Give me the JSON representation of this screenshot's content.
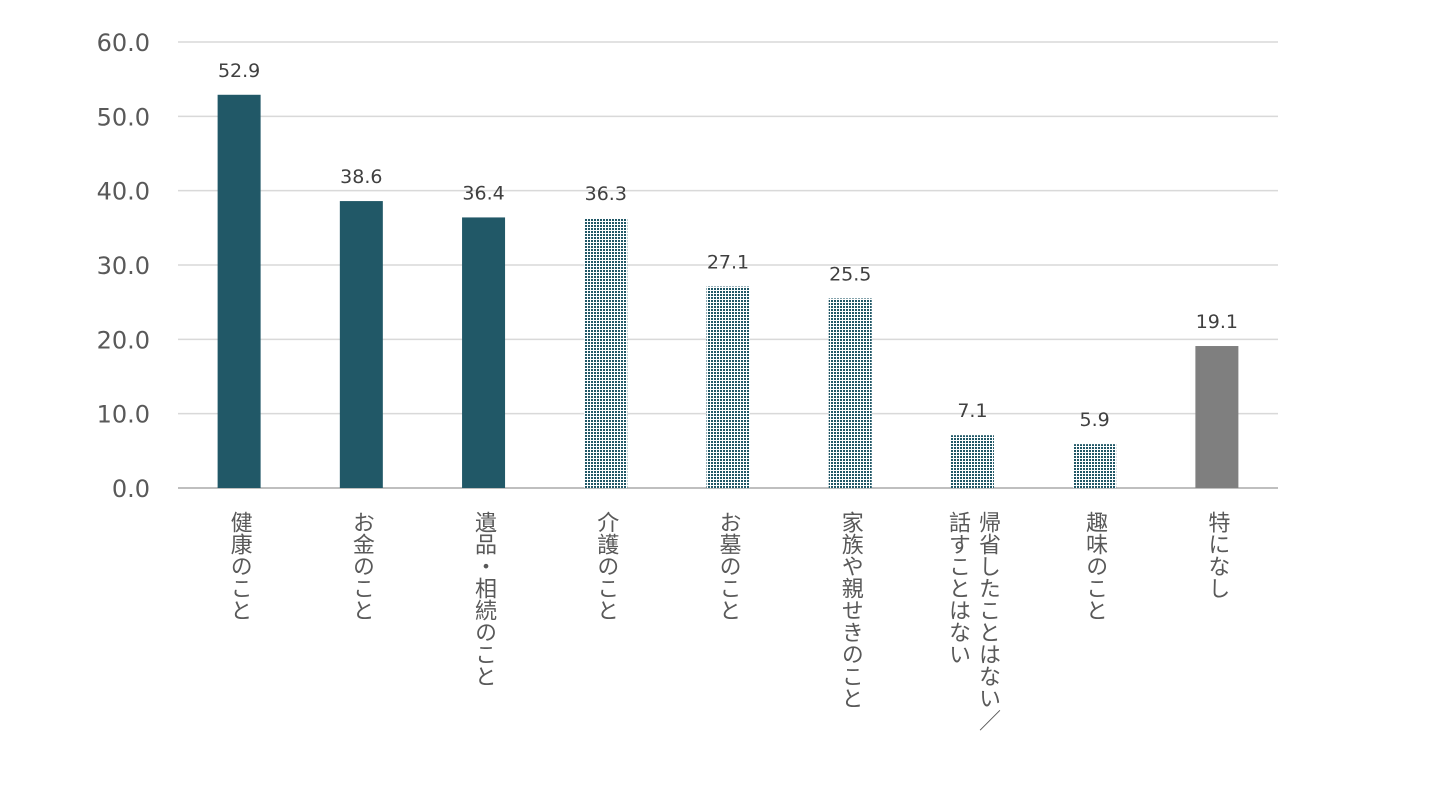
{
  "chart_data": {
    "type": "bar",
    "title": "",
    "xlabel": "",
    "ylabel": "",
    "ylim": [
      0,
      60
    ],
    "yticks": [
      "0.0",
      "10.0",
      "20.0",
      "30.0",
      "40.0",
      "50.0",
      "60.0"
    ],
    "grid": true,
    "categories": [
      [
        "健康のこと"
      ],
      [
        "お金のこと"
      ],
      [
        "遺品・相続のこと"
      ],
      [
        "介護のこと"
      ],
      [
        "お墓のこと"
      ],
      [
        "家族や親せきのこと"
      ],
      [
        "帰省したことはない／",
        "話すことはない"
      ],
      [
        "趣味のこと"
      ],
      [
        "特になし"
      ]
    ],
    "values": [
      52.9,
      38.6,
      36.4,
      36.3,
      27.1,
      25.5,
      7.1,
      5.9,
      19.1
    ],
    "value_labels": [
      "52.9",
      "38.6",
      "36.4",
      "36.3",
      "27.1",
      "25.5",
      "7.1",
      "5.9",
      "19.1"
    ],
    "bar_styles": [
      "solid",
      "solid",
      "solid",
      "dotted",
      "dotted",
      "dotted",
      "dotted",
      "dotted",
      "gray"
    ],
    "colors": {
      "solid": "#215867",
      "dotted": "#215867",
      "dotted_bg": "#ffffff",
      "gray": "#7f7f7f"
    }
  }
}
